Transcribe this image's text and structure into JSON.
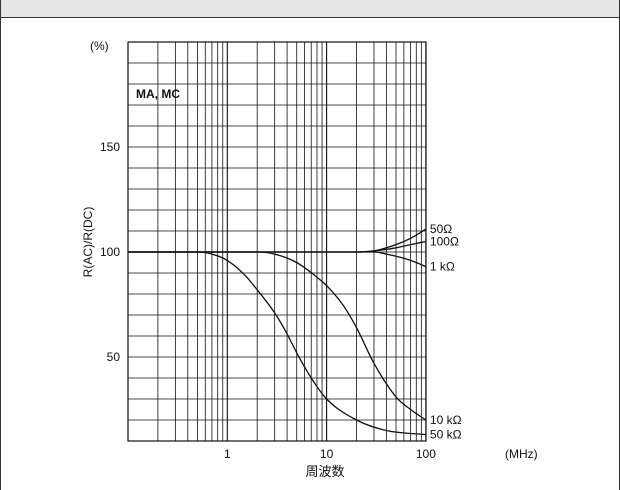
{
  "chart_data": {
    "type": "line",
    "title": "MA, MC",
    "ylabel": "R(AC)/R(DC)",
    "y_unit": "(%)",
    "xlabel": "周波数",
    "x_unit": "(MHz)",
    "x_scale": "log",
    "xlim": [
      0.1,
      200
    ],
    "ylim": [
      10,
      200
    ],
    "x_ticks": [
      1,
      10,
      100
    ],
    "x_tick_labels": [
      "1",
      "10",
      "100"
    ],
    "y_ticks": [
      50,
      100,
      150
    ],
    "y_tick_labels": [
      "50",
      "100",
      "150"
    ],
    "grid": true,
    "series": [
      {
        "name": "50Ω",
        "x": [
          0.1,
          20,
          30,
          40,
          60,
          80,
          100
        ],
        "y": [
          100,
          100,
          100.5,
          102,
          105,
          108,
          111
        ]
      },
      {
        "name": "100Ω",
        "x": [
          0.1,
          20,
          30,
          50,
          70,
          100
        ],
        "y": [
          100,
          100,
          100.5,
          102,
          103.5,
          105
        ]
      },
      {
        "name": "1 kΩ",
        "x": [
          0.1,
          30,
          40,
          60,
          80,
          100
        ],
        "y": [
          100,
          100,
          99,
          97,
          95,
          93
        ]
      },
      {
        "name": "10 kΩ",
        "x": [
          0.1,
          2,
          3,
          5,
          8,
          10,
          15,
          20,
          30,
          50,
          70,
          100
        ],
        "y": [
          100,
          100,
          99,
          95,
          88,
          84,
          74,
          64,
          47,
          31,
          25,
          20
        ]
      },
      {
        "name": "50 kΩ",
        "x": [
          0.1,
          0.5,
          0.7,
          1,
          1.5,
          2,
          3,
          4,
          5,
          7,
          10,
          20,
          40,
          100
        ],
        "y": [
          100,
          100,
          99,
          96,
          89,
          82,
          71,
          61,
          52,
          40,
          30,
          20,
          15,
          13
        ]
      }
    ]
  }
}
